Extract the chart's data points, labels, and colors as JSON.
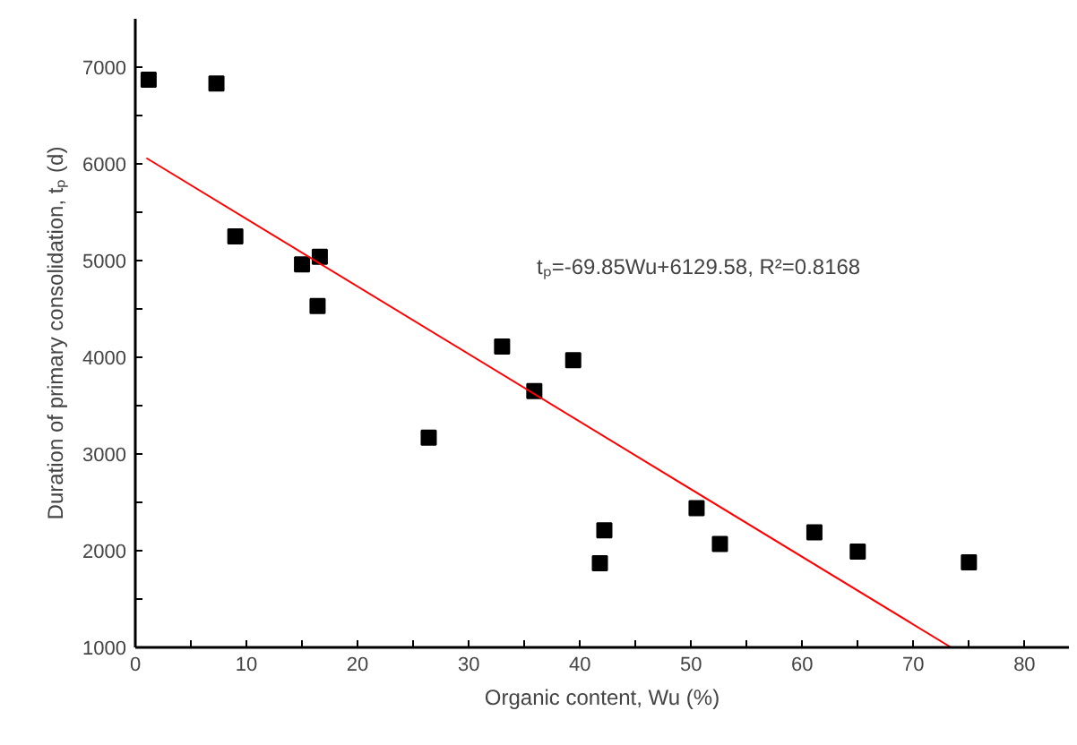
{
  "chart_data": {
    "type": "scatter",
    "xlabel": "Organic content, Wu (%)",
    "ylabel": "Duration of primary consolidation, tₚ (d)",
    "xlim": [
      0,
      84
    ],
    "ylim": [
      1000,
      7500
    ],
    "xticks": [
      0,
      {
        "value": 5,
        "label": null
      },
      10,
      {
        "value": 15,
        "label": null
      },
      20,
      {
        "value": 25,
        "label": null
      },
      30,
      {
        "value": 35,
        "label": null
      },
      40,
      {
        "value": 45,
        "label": null
      },
      50,
      {
        "value": 55,
        "label": null
      },
      60,
      {
        "value": 65,
        "label": null
      },
      70,
      {
        "value": 75,
        "label": null
      },
      80
    ],
    "yticks": [
      1000,
      {
        "value": 1500,
        "label": null
      },
      2000,
      {
        "value": 2500,
        "label": null
      },
      3000,
      {
        "value": 3500,
        "label": null
      },
      4000,
      {
        "value": 4500,
        "label": null
      },
      5000,
      {
        "value": 5500,
        "label": null
      },
      6000,
      {
        "value": 6500,
        "label": null
      },
      7000
    ],
    "grid": false,
    "annotations": [
      "tₚ=-69.85Wu+6129.58, R²=0.8168"
    ],
    "series": [
      {
        "marker": "square",
        "color": "#000000",
        "x": [
          1.2,
          7.3,
          9.0,
          15.0,
          16.6,
          16.4,
          26.4,
          33.0,
          35.9,
          39.4,
          41.8,
          42.2,
          50.5,
          52.6,
          61.1,
          65.0,
          75.0
        ],
        "values": [
          6870,
          6830,
          5250,
          4960,
          5040,
          4530,
          3170,
          4110,
          3650,
          3970,
          1870,
          2210,
          2440,
          2070,
          2190,
          1990,
          1880
        ]
      },
      {
        "type": "line",
        "marker": "none",
        "color": "#ff0000",
        "x": [
          1.0,
          73.4
        ],
        "values": [
          6060,
          1000
        ]
      }
    ]
  }
}
